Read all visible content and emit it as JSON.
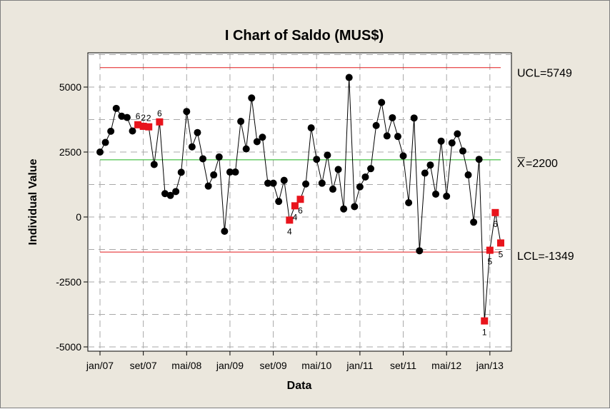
{
  "chart_data": {
    "type": "line",
    "title": "I Chart of Saldo (MUS$)",
    "xlabel": "Data",
    "ylabel": "Individual Value",
    "ylim": [
      -5000,
      6500
    ],
    "y_ticks": [
      "5000",
      "2500",
      "0",
      "-2500",
      "-5000"
    ],
    "y_tick_values": [
      5000,
      2500,
      0,
      -2500,
      -5000
    ],
    "x_ticks": [
      "jan/07",
      "set/07",
      "mai/08",
      "jan/09",
      "set/09",
      "mai/10",
      "jan/11",
      "set/11",
      "mai/12",
      "jan/13"
    ],
    "x_tick_index": [
      1,
      9,
      17,
      25,
      33,
      41,
      49,
      57,
      65,
      73
    ],
    "control_limits": {
      "ucl": {
        "label": "UCL=5749",
        "value": 5749
      },
      "center": {
        "label_bar": "X",
        "label_rest": "=2200",
        "value": 2200
      },
      "lcl": {
        "label": "LCL=-1349",
        "value": -1349
      }
    },
    "series": [
      {
        "values": [
          2500,
          2870,
          3300,
          4180,
          3880,
          3830,
          3310,
          3550,
          3490,
          3470,
          2020,
          3660,
          900,
          830,
          980,
          1720,
          4060,
          2700,
          3250,
          2240,
          1190,
          1620,
          2310,
          -550,
          1730,
          1730,
          3680,
          2620,
          4580,
          2900,
          3070,
          1300,
          1300,
          600,
          1410,
          -120,
          430,
          680,
          1270,
          3430,
          2220,
          1300,
          2380,
          1070,
          1830,
          310,
          5370,
          400,
          1160,
          1540,
          1860,
          3520,
          4410,
          3120,
          3820,
          3100,
          2350,
          550,
          3810,
          -1300,
          1690,
          2000,
          880,
          2920,
          800,
          2850,
          3200,
          2540,
          1620,
          -200,
          2220,
          -4000,
          -1280,
          170,
          -1000
        ],
        "flagged": [
          {
            "index": 8,
            "label": "6"
          },
          {
            "index": 9,
            "label": "2"
          },
          {
            "index": 10,
            "label": "2"
          },
          {
            "index": 12,
            "label": "6"
          },
          {
            "index": 36,
            "label": "4"
          },
          {
            "index": 37,
            "label": "4"
          },
          {
            "index": 38,
            "label": "6"
          },
          {
            "index": 72,
            "label": "1"
          },
          {
            "index": 73,
            "label": "5"
          },
          {
            "index": 74,
            "label": "6"
          },
          {
            "index": 75,
            "label": "5"
          }
        ]
      }
    ],
    "colors": {
      "ucl_lcl": "#e31a1c",
      "center": "#1db41d",
      "points": "#000000",
      "flagged": "#e8141c",
      "grid": "#a8a8a8"
    },
    "grid": true
  }
}
